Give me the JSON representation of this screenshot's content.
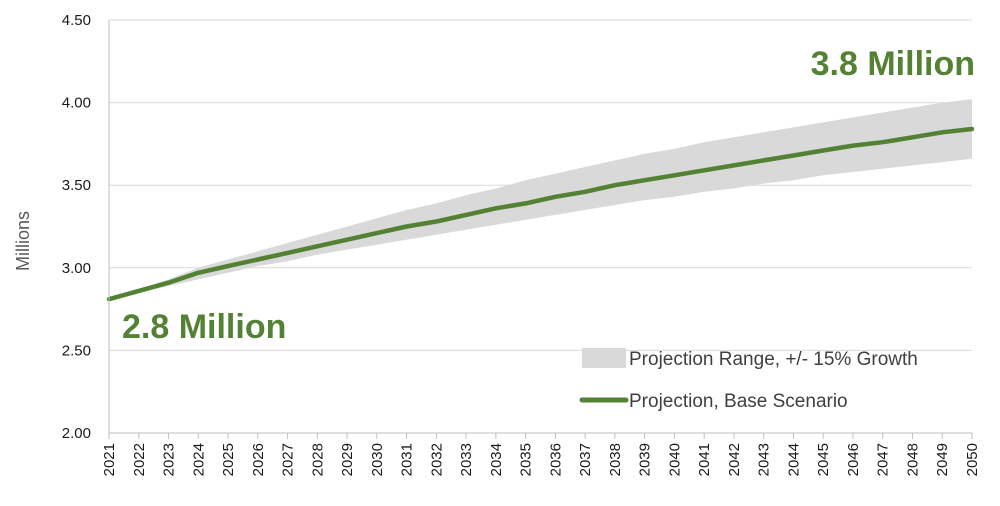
{
  "chart_data": {
    "type": "line",
    "ylabel": "Millions",
    "ylim": [
      2.0,
      4.5
    ],
    "yticks": [
      "2.00",
      "2.50",
      "3.00",
      "3.50",
      "4.00",
      "4.50"
    ],
    "ytick_values": [
      2.0,
      2.5,
      3.0,
      3.5,
      4.0,
      4.5
    ],
    "x": [
      "2021",
      "2022",
      "2023",
      "2024",
      "2025",
      "2026",
      "2027",
      "2028",
      "2029",
      "2030",
      "2031",
      "2032",
      "2033",
      "2034",
      "2035",
      "2036",
      "2037",
      "2038",
      "2039",
      "2040",
      "2041",
      "2042",
      "2043",
      "2044",
      "2045",
      "2046",
      "2047",
      "2048",
      "2049",
      "2050"
    ],
    "grid": true,
    "legend_position": "bottom-right",
    "series": [
      {
        "name": "Projection, Base Scenario",
        "kind": "line",
        "color": "#548235",
        "values": [
          2.81,
          2.86,
          2.91,
          2.97,
          3.01,
          3.05,
          3.09,
          3.13,
          3.17,
          3.21,
          3.25,
          3.28,
          3.32,
          3.36,
          3.39,
          3.43,
          3.46,
          3.5,
          3.53,
          3.56,
          3.59,
          3.62,
          3.65,
          3.68,
          3.71,
          3.74,
          3.76,
          3.79,
          3.82,
          3.84
        ]
      },
      {
        "name": "Projection Range, +/- 15% Growth",
        "kind": "band",
        "color": "#d9d9d9",
        "upper": [
          2.81,
          2.87,
          2.93,
          3.0,
          3.05,
          3.1,
          3.15,
          3.2,
          3.25,
          3.3,
          3.35,
          3.39,
          3.44,
          3.48,
          3.53,
          3.57,
          3.61,
          3.65,
          3.69,
          3.72,
          3.76,
          3.79,
          3.82,
          3.85,
          3.88,
          3.91,
          3.94,
          3.97,
          4.0,
          4.02
        ],
        "lower": [
          2.81,
          2.85,
          2.89,
          2.93,
          2.97,
          3.01,
          3.04,
          3.08,
          3.11,
          3.14,
          3.17,
          3.2,
          3.23,
          3.26,
          3.29,
          3.32,
          3.35,
          3.38,
          3.41,
          3.43,
          3.46,
          3.48,
          3.51,
          3.53,
          3.56,
          3.58,
          3.6,
          3.62,
          3.64,
          3.66
        ]
      }
    ],
    "annotations": [
      {
        "id": "start",
        "text": "2.8 Million",
        "color": "#548235"
      },
      {
        "id": "end",
        "text": "3.8 Million",
        "color": "#548235"
      }
    ]
  }
}
